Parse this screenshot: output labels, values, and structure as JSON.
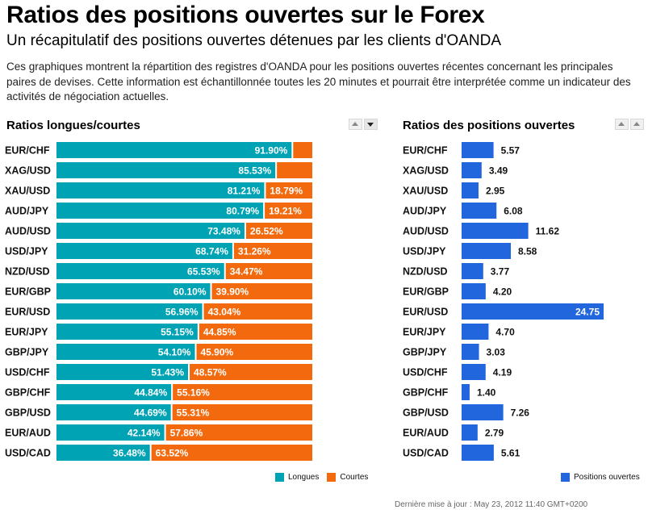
{
  "header": {
    "title": "Ratios des positions ouvertes sur le Forex",
    "subtitle": "Un récapitulatif des positions ouvertes détenues par les clients d'OANDA",
    "description": "Ces graphiques montrent la répartition des registres d'OANDA pour les positions ouvertes récentes concernant les principales paires de devises. Cette information est échantillonnée toutes les 20 minutes et pourrait être interprétée comme un indicateur des activités de négociation actuelles."
  },
  "footer": {
    "updated": "Dernière mise à jour : May 23, 2012 11:40 GMT+0200"
  },
  "chart_data": [
    {
      "type": "bar",
      "orientation": "horizontal",
      "stacked": true,
      "title": "Ratios longues/courtes",
      "categories": [
        "EUR/CHF",
        "XAG/USD",
        "XAU/USD",
        "AUD/JPY",
        "AUD/USD",
        "USD/JPY",
        "NZD/USD",
        "EUR/GBP",
        "EUR/USD",
        "EUR/JPY",
        "GBP/JPY",
        "USD/CHF",
        "GBP/CHF",
        "GBP/USD",
        "EUR/AUD",
        "USD/CAD"
      ],
      "series": [
        {
          "name": "Longues",
          "color": "#00a3b4",
          "values": [
            91.9,
            85.53,
            81.21,
            80.79,
            73.48,
            68.74,
            65.53,
            60.1,
            56.96,
            55.15,
            54.1,
            51.43,
            44.84,
            44.69,
            42.14,
            36.48
          ],
          "labels": [
            "91.90%",
            "85.53%",
            "81.21%",
            "80.79%",
            "73.48%",
            "68.74%",
            "65.53%",
            "60.10%",
            "56.96%",
            "55.15%",
            "54.10%",
            "51.43%",
            "44.84%",
            "44.69%",
            "42.14%",
            "36.48%"
          ]
        },
        {
          "name": "Courtes",
          "color": "#f26a0d",
          "values": [
            8.1,
            14.47,
            18.79,
            19.21,
            26.52,
            31.26,
            34.47,
            39.9,
            43.04,
            44.85,
            45.9,
            48.57,
            55.16,
            55.31,
            57.86,
            63.52
          ],
          "labels": [
            "",
            "",
            "18.79%",
            "19.21%",
            "26.52%",
            "31.26%",
            "34.47%",
            "39.90%",
            "43.04%",
            "44.85%",
            "45.90%",
            "48.57%",
            "55.16%",
            "55.31%",
            "57.86%",
            "63.52%"
          ]
        }
      ],
      "xlim": [
        0,
        100
      ],
      "legend_position": "bottom-right",
      "grid": false
    },
    {
      "type": "bar",
      "orientation": "horizontal",
      "title": "Ratios des positions ouvertes",
      "categories": [
        "EUR/CHF",
        "XAG/USD",
        "XAU/USD",
        "AUD/JPY",
        "AUD/USD",
        "USD/JPY",
        "NZD/USD",
        "EUR/GBP",
        "EUR/USD",
        "EUR/JPY",
        "GBP/JPY",
        "USD/CHF",
        "GBP/CHF",
        "GBP/USD",
        "EUR/AUD",
        "USD/CAD"
      ],
      "series": [
        {
          "name": "Positions ouvertes",
          "color": "#2266dd",
          "values": [
            5.57,
            3.49,
            2.95,
            6.08,
            11.62,
            8.58,
            3.77,
            4.2,
            24.75,
            4.7,
            3.03,
            4.19,
            1.4,
            7.26,
            2.79,
            5.61
          ],
          "labels": [
            "5.57",
            "3.49",
            "2.95",
            "6.08",
            "11.62",
            "8.58",
            "3.77",
            "4.20",
            "24.75",
            "4.70",
            "3.03",
            "4.19",
            "1.40",
            "7.26",
            "2.79",
            "5.61"
          ]
        }
      ],
      "xlim": [
        0,
        24.75
      ],
      "legend_position": "bottom-right",
      "grid": false
    }
  ]
}
